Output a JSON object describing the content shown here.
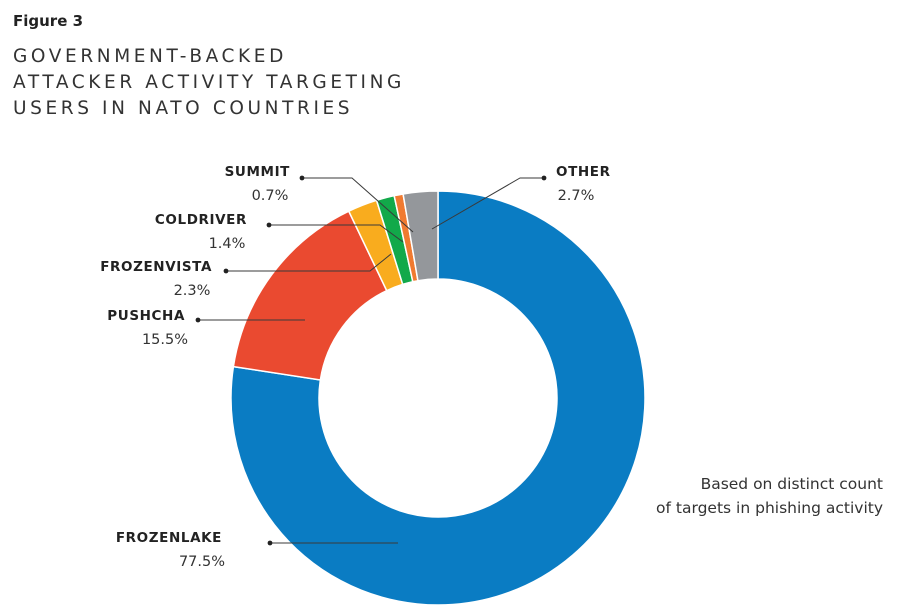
{
  "figure_label": "Figure 3",
  "title_lines": [
    "GOVERNMENT-BACKED",
    "ATTACKER ACTIVITY TARGETING",
    "USERS IN NATO COUNTRIES"
  ],
  "note_lines": [
    "Based on distinct count",
    "of targets in phishing activity"
  ],
  "chart_data": {
    "type": "pie",
    "variant": "donut",
    "start": "top, clockwise",
    "title": "GOVERNMENT-BACKED ATTACKER ACTIVITY TARGETING USERS IN NATO COUNTRIES",
    "slices": [
      {
        "label": "FROZENLAKE",
        "value": 77.5,
        "display": "77.5%",
        "color": "#0a7cc3"
      },
      {
        "label": "PUSHCHA",
        "value": 15.5,
        "display": "15.5%",
        "color": "#ea4a30"
      },
      {
        "label": "FROZENVISTA",
        "value": 2.3,
        "display": "2.3%",
        "color": "#f9ac1e"
      },
      {
        "label": "COLDRIVER",
        "value": 1.4,
        "display": "1.4%",
        "color": "#12a94a"
      },
      {
        "label": "SUMMIT",
        "value": 0.7,
        "display": "0.7%",
        "color": "#f07a30"
      },
      {
        "label": "OTHER",
        "value": 2.7,
        "display": "2.7%",
        "color": "#94979b"
      }
    ],
    "annotation": "Based on distinct count of targets in phishing activity"
  }
}
